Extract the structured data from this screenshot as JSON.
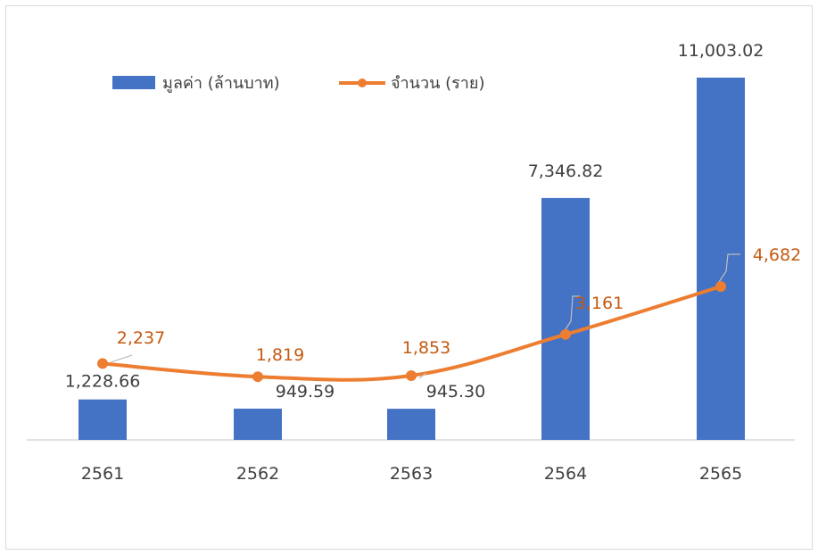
{
  "chart_data": {
    "type": "bar",
    "categories": [
      "2561",
      "2562",
      "2563",
      "2564",
      "2565"
    ],
    "series": [
      {
        "name": "มูลค่า (ล้านบาท)",
        "kind": "bar",
        "color": "#4472c4",
        "values": [
          1228.66,
          949.59,
          945.3,
          7346.82,
          11003.02
        ],
        "labels": [
          "1,228.66",
          "949.59",
          "945.30",
          "7,346.82",
          "11,003.02"
        ]
      },
      {
        "name": "จำนวน (ราย)",
        "kind": "line",
        "color": "#ed7d31",
        "values": [
          2237,
          1819,
          1853,
          3161,
          4682
        ],
        "labels": [
          "2,237",
          "1,819",
          "1,853",
          "3,161",
          "4,682"
        ]
      }
    ],
    "title": "",
    "xlabel": "",
    "ylabel": "",
    "grid": false,
    "legend": "top-left",
    "axis_color": "#d9d9d9",
    "label_color_bar": "#404040",
    "label_color_line": "#c55a11"
  }
}
